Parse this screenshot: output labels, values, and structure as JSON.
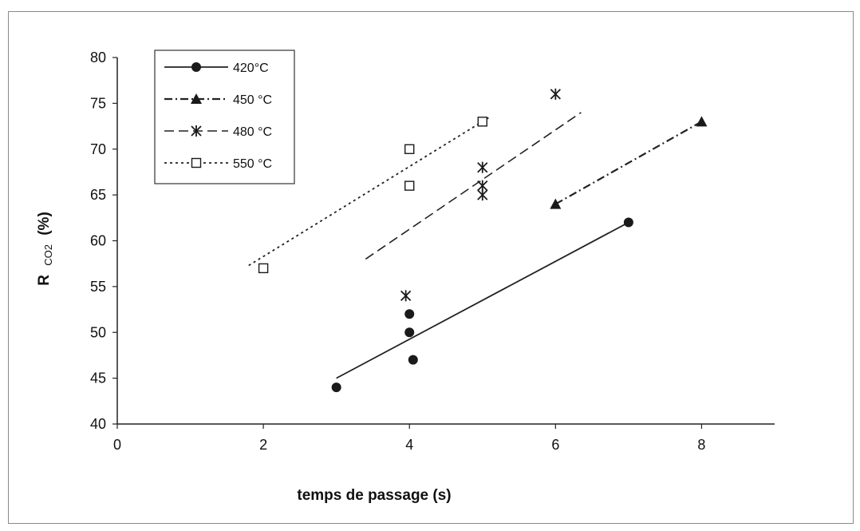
{
  "chart_data": {
    "type": "scatter",
    "title": "",
    "xlabel": "temps de passage (s)",
    "ylabel_main": "R",
    "ylabel_sub": "CO2",
    "ylabel_unit": "(%)",
    "xlim": [
      0,
      9
    ],
    "ylim": [
      40,
      80
    ],
    "xticks": [
      0,
      2,
      4,
      6,
      8
    ],
    "yticks": [
      40,
      45,
      50,
      55,
      60,
      65,
      70,
      75,
      80
    ],
    "grid": false,
    "legend_position": "top-left",
    "series": [
      {
        "name": "420°C",
        "marker": "circle",
        "line_style": "solid",
        "points": [
          [
            3,
            44
          ],
          [
            4,
            52
          ],
          [
            4,
            50
          ],
          [
            4.05,
            47
          ],
          [
            7,
            62
          ]
        ],
        "trend": [
          [
            3,
            45
          ],
          [
            7,
            62
          ]
        ]
      },
      {
        "name": "450 °C",
        "marker": "triangle",
        "line_style": "dashdot",
        "points": [
          [
            6,
            64
          ],
          [
            8,
            73
          ]
        ],
        "trend": [
          [
            6,
            64
          ],
          [
            8,
            73
          ]
        ]
      },
      {
        "name": "480 °C",
        "marker": "asterisk",
        "line_style": "dashed",
        "points": [
          [
            3.95,
            54
          ],
          [
            5,
            68
          ],
          [
            5,
            66
          ],
          [
            5,
            65
          ],
          [
            6,
            76
          ]
        ],
        "trend": [
          [
            3.4,
            58
          ],
          [
            6.35,
            74
          ]
        ]
      },
      {
        "name": "550 °C",
        "marker": "square",
        "line_style": "dotted",
        "points": [
          [
            2,
            57
          ],
          [
            4,
            70
          ],
          [
            4,
            66
          ],
          [
            5,
            73
          ]
        ],
        "trend": [
          [
            1.8,
            57.3
          ],
          [
            5.1,
            73.5
          ]
        ]
      }
    ]
  }
}
